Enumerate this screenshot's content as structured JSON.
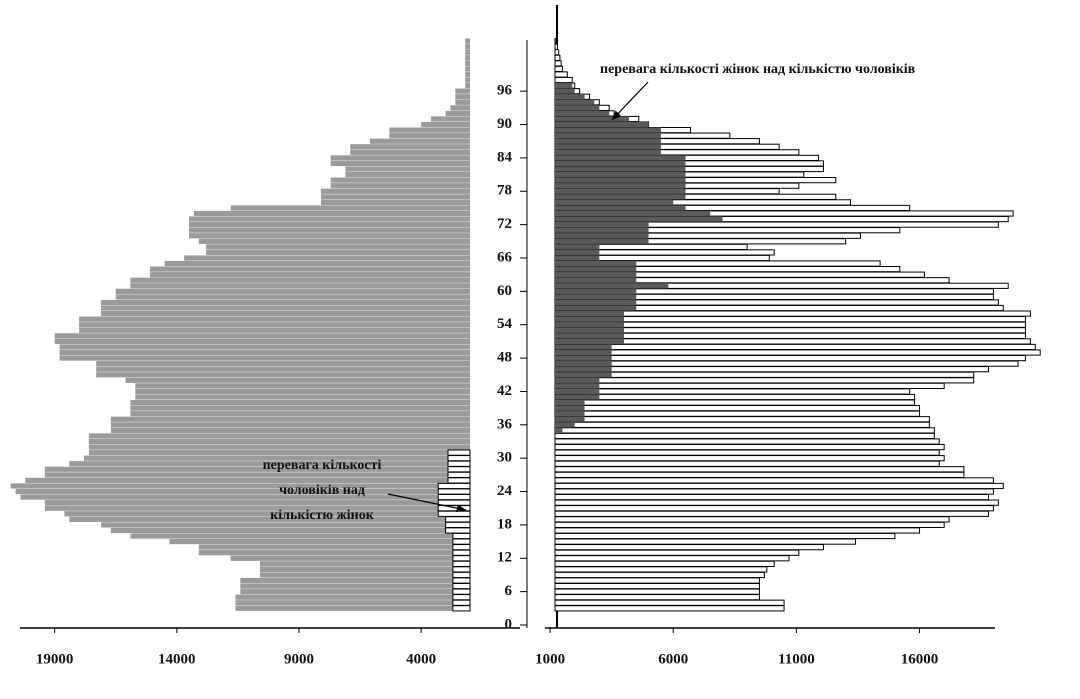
{
  "chart_data": {
    "type": "pyramid",
    "ages": [
      3,
      4,
      5,
      6,
      7,
      8,
      9,
      10,
      11,
      12,
      13,
      14,
      15,
      16,
      17,
      18,
      19,
      20,
      21,
      22,
      23,
      24,
      25,
      26,
      27,
      28,
      29,
      30,
      31,
      32,
      33,
      34,
      35,
      36,
      37,
      38,
      39,
      40,
      41,
      42,
      43,
      44,
      45,
      46,
      47,
      48,
      49,
      50,
      51,
      52,
      53,
      54,
      55,
      56,
      57,
      58,
      59,
      60,
      61,
      62,
      63,
      64,
      65,
      66,
      67,
      68,
      69,
      70,
      71,
      72,
      73,
      74,
      75,
      76,
      77,
      78,
      79,
      80,
      81,
      82,
      83,
      84,
      85,
      86,
      87,
      88,
      89,
      90,
      91,
      92,
      93,
      94,
      95,
      96,
      97,
      98,
      99,
      100,
      101,
      102,
      103,
      104,
      105
    ],
    "ylim": [
      0,
      107
    ],
    "yticks": [
      0,
      6,
      12,
      18,
      24,
      30,
      36,
      42,
      48,
      54,
      60,
      66,
      72,
      78,
      84,
      90,
      96
    ],
    "left": {
      "xlim": [
        20500,
        2000
      ],
      "xticks": [
        19000,
        14000,
        9000,
        4000
      ]
    },
    "right": {
      "xlim": [
        1200,
        21500
      ],
      "xticks": [
        1000,
        6000,
        11000,
        16000
      ]
    },
    "series": [
      {
        "side": "left",
        "color": "#9a9a9a",
        "values": [
          11600,
          11600,
          11600,
          11400,
          11400,
          11400,
          10600,
          10600,
          10600,
          11800,
          13100,
          13100,
          14300,
          15900,
          16700,
          17100,
          18400,
          18600,
          19400,
          19400,
          20400,
          20600,
          20800,
          20200,
          19400,
          19400,
          18400,
          17800,
          17600,
          17600,
          17600,
          17600,
          16700,
          16700,
          16700,
          15900,
          15900,
          15900,
          15700,
          15700,
          15700,
          16100,
          17300,
          17300,
          17300,
          18800,
          18800,
          18800,
          19000,
          19000,
          18000,
          18000,
          18000,
          17100,
          17100,
          17100,
          16500,
          16500,
          15900,
          15900,
          15100,
          15100,
          14500,
          13700,
          12800,
          12800,
          13100,
          13500,
          13500,
          13500,
          13500,
          13300,
          11800,
          8100,
          8100,
          8100,
          7700,
          7700,
          7100,
          7100,
          7700,
          7700,
          6900,
          6900,
          6100,
          5300,
          5300,
          4000,
          3600,
          3000,
          2800,
          2600,
          2600,
          2600,
          2200,
          2200,
          2200,
          2200,
          2200,
          2200,
          2200,
          2200,
          2200
        ]
      },
      {
        "side": "left",
        "color": "#ffffff",
        "values": [
          2700,
          2700,
          2700,
          2700,
          2700,
          2700,
          2700,
          2700,
          2700,
          2700,
          2700,
          2700,
          2700,
          2700,
          3000,
          3000,
          3000,
          3300,
          3300,
          3300,
          3300,
          3300,
          3300,
          2900,
          2900,
          2900,
          2900,
          2900,
          2900,
          null,
          null,
          null,
          null,
          null,
          null,
          null,
          null,
          null,
          null,
          null,
          null,
          null,
          null,
          null,
          null,
          null,
          null,
          null,
          null,
          null,
          null,
          null,
          null,
          null,
          null,
          null,
          null,
          null,
          null,
          null,
          null,
          null,
          null,
          null,
          null,
          null,
          null,
          null,
          null,
          null,
          null,
          null,
          null,
          null,
          null,
          null,
          null,
          null,
          null,
          null,
          null,
          null,
          null,
          null,
          null,
          null,
          null,
          null,
          null,
          null,
          null,
          null,
          null,
          null,
          null,
          null,
          null,
          null,
          null,
          null,
          null,
          null,
          null
        ]
      },
      {
        "side": "right",
        "color": "#ffffff",
        "values": [
          10500,
          10500,
          9500,
          9500,
          9500,
          9500,
          9700,
          9800,
          10100,
          10700,
          11100,
          12100,
          13400,
          15000,
          16000,
          17000,
          17200,
          18800,
          19000,
          19200,
          18800,
          19000,
          19400,
          19000,
          17800,
          17800,
          16800,
          17000,
          16800,
          17000,
          16800,
          16600,
          16600,
          16400,
          16400,
          16000,
          16000,
          15800,
          15800,
          15600,
          17000,
          18200,
          18200,
          18800,
          20000,
          20300,
          20900,
          20700,
          20500,
          20300,
          20300,
          20300,
          20300,
          20500,
          19400,
          19200,
          19000,
          19000,
          19600,
          17200,
          16200,
          15200,
          14400,
          9900,
          10100,
          9000,
          13000,
          13600,
          15200,
          19200,
          19600,
          19800,
          15600,
          13200,
          12600,
          10300,
          11100,
          12600,
          11300,
          12100,
          12100,
          11900,
          11100,
          10300,
          9500,
          8300,
          6700,
          5000,
          4600,
          3600,
          3400,
          3000,
          2600,
          2200,
          2000,
          1900,
          1700,
          1500,
          1450,
          1400,
          1350,
          1300,
          1250
        ]
      },
      {
        "side": "right",
        "color": "#5a5a5a",
        "values": [
          null,
          null,
          null,
          null,
          null,
          null,
          null,
          null,
          null,
          null,
          null,
          null,
          null,
          null,
          null,
          null,
          null,
          null,
          null,
          null,
          null,
          null,
          null,
          null,
          null,
          null,
          null,
          null,
          null,
          null,
          null,
          null,
          1500,
          2000,
          2400,
          2400,
          2400,
          2400,
          3000,
          3000,
          3000,
          3000,
          3500,
          3500,
          3500,
          3500,
          3500,
          3500,
          4000,
          4000,
          4000,
          4000,
          4000,
          4000,
          4500,
          4500,
          4500,
          4500,
          5800,
          4500,
          4500,
          4500,
          4500,
          3000,
          3000,
          3000,
          5000,
          5000,
          5000,
          5000,
          8000,
          7500,
          6500,
          6000,
          6500,
          6500,
          6500,
          6500,
          6500,
          6500,
          6500,
          6500,
          5500,
          5500,
          5500,
          5500,
          5500,
          5000,
          4200,
          3400,
          3000,
          2800,
          2400,
          2000,
          1900,
          null,
          null,
          null,
          null,
          null,
          null,
          null,
          null
        ]
      }
    ],
    "annotations": [
      {
        "lines": [
          "перевага кількості жінок над кількістю чоловіків"
        ]
      },
      {
        "lines": [
          "перевага кількості",
          "чоловіків над",
          "кількістю жінок"
        ]
      }
    ]
  }
}
